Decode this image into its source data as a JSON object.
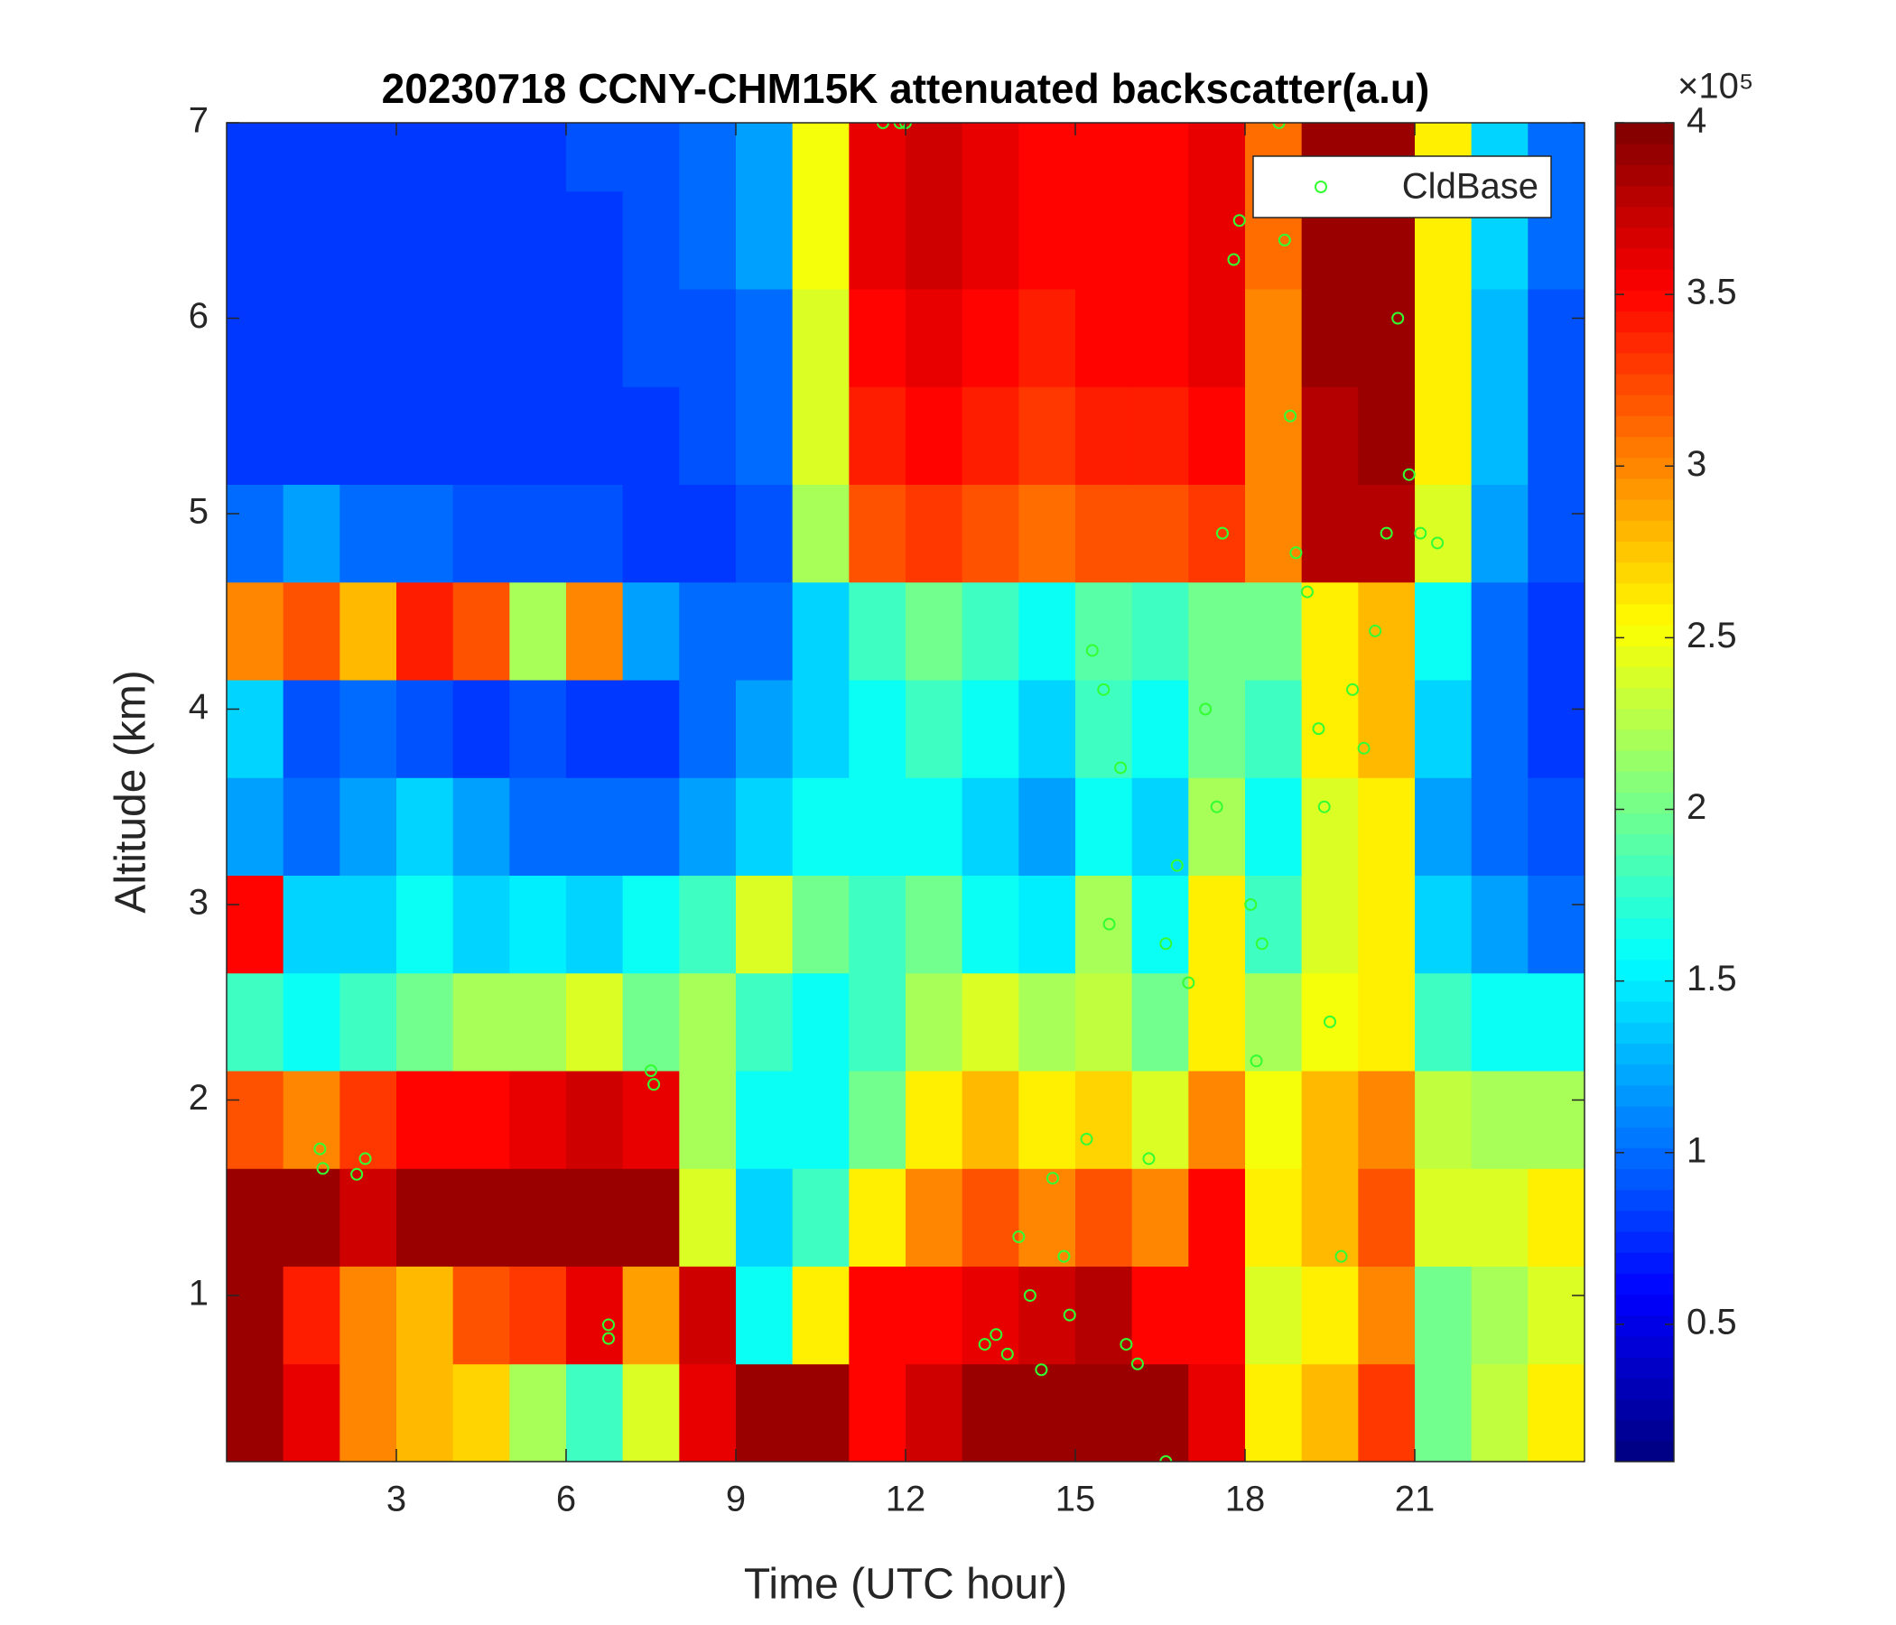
{
  "chart_data": {
    "type": "heatmap",
    "title": "20230718 CCNY-CHM15K attenuated backscatter(a.u)",
    "x_label": "Time (UTC hour)",
    "y_label": "Altitude (km)",
    "x": [
      0.5,
      1.5,
      2.5,
      3.5,
      4.5,
      5.5,
      6.5,
      7.5,
      8.5,
      9.5,
      10.5,
      11.5,
      12.5,
      13.5,
      14.5,
      15.5,
      16.5,
      17.5,
      18.5,
      19.5,
      20.5,
      21.5,
      22.5,
      23.5
    ],
    "y": [
      0.4,
      0.9,
      1.4,
      1.9,
      2.4,
      2.9,
      3.4,
      3.9,
      4.4,
      4.9,
      5.4,
      5.9,
      6.4,
      6.9
    ],
    "values": [
      [
        3.9,
        3.6,
        3.0,
        2.8,
        2.7,
        2.2,
        1.8,
        2.4,
        3.6,
        3.9,
        3.9,
        3.5,
        3.7,
        3.9,
        3.9,
        3.9,
        3.9,
        3.6,
        2.6,
        2.8,
        3.3,
        2.0,
        2.3,
        2.6
      ],
      [
        3.9,
        3.4,
        3.0,
        2.8,
        3.2,
        3.3,
        3.6,
        2.9,
        3.7,
        1.6,
        2.6,
        3.5,
        3.5,
        3.6,
        3.7,
        3.8,
        3.5,
        3.5,
        2.4,
        2.6,
        3.0,
        2.0,
        2.2,
        2.4
      ],
      [
        3.9,
        3.9,
        3.7,
        3.9,
        3.9,
        3.9,
        3.9,
        3.9,
        2.4,
        1.4,
        1.8,
        2.6,
        3.0,
        3.2,
        3.0,
        3.2,
        3.0,
        3.5,
        2.6,
        2.8,
        3.2,
        2.4,
        2.4,
        2.6
      ],
      [
        3.2,
        3.0,
        3.3,
        3.5,
        3.5,
        3.6,
        3.7,
        3.6,
        2.2,
        1.6,
        1.6,
        2.0,
        2.6,
        2.8,
        2.6,
        2.7,
        2.4,
        3.0,
        2.5,
        2.8,
        3.0,
        2.3,
        2.2,
        2.2
      ],
      [
        1.8,
        1.6,
        1.8,
        2.0,
        2.2,
        2.2,
        2.4,
        2.0,
        2.2,
        1.8,
        1.6,
        1.8,
        2.2,
        2.4,
        2.2,
        2.3,
        2.0,
        2.6,
        2.2,
        2.5,
        2.6,
        1.8,
        1.6,
        1.6
      ],
      [
        3.5,
        1.4,
        1.4,
        1.6,
        1.4,
        1.5,
        1.4,
        1.6,
        1.8,
        2.4,
        2.0,
        1.8,
        2.0,
        1.6,
        1.5,
        2.2,
        1.6,
        2.6,
        1.8,
        2.4,
        2.6,
        1.4,
        1.2,
        1.0
      ],
      [
        1.2,
        1.0,
        1.2,
        1.4,
        1.2,
        1.0,
        1.0,
        1.0,
        1.2,
        1.4,
        1.6,
        1.6,
        1.6,
        1.4,
        1.2,
        1.6,
        1.4,
        2.2,
        1.6,
        2.4,
        2.6,
        1.2,
        1.0,
        0.9
      ],
      [
        1.4,
        0.9,
        1.0,
        0.9,
        0.8,
        0.9,
        0.8,
        0.8,
        1.0,
        1.2,
        1.4,
        1.6,
        1.8,
        1.6,
        1.4,
        1.8,
        1.6,
        2.0,
        1.8,
        2.6,
        2.8,
        1.4,
        1.0,
        0.8
      ],
      [
        3.0,
        3.2,
        2.8,
        3.4,
        3.2,
        2.2,
        3.0,
        1.2,
        1.0,
        1.0,
        1.4,
        1.8,
        2.0,
        1.8,
        1.6,
        1.9,
        1.8,
        2.0,
        2.0,
        2.6,
        2.8,
        1.6,
        1.0,
        0.8
      ],
      [
        1.0,
        1.2,
        1.0,
        1.0,
        0.9,
        0.9,
        0.9,
        0.8,
        0.8,
        0.9,
        2.2,
        3.2,
        3.3,
        3.2,
        3.1,
        3.2,
        3.2,
        3.3,
        3.0,
        3.8,
        3.8,
        2.4,
        1.2,
        0.9
      ],
      [
        0.8,
        0.8,
        0.8,
        0.8,
        0.8,
        0.8,
        0.8,
        0.8,
        0.9,
        1.0,
        2.4,
        3.4,
        3.5,
        3.4,
        3.3,
        3.4,
        3.4,
        3.5,
        3.0,
        3.8,
        3.9,
        2.6,
        1.3,
        0.9
      ],
      [
        0.8,
        0.8,
        0.8,
        0.8,
        0.8,
        0.8,
        0.8,
        0.9,
        0.9,
        1.0,
        2.4,
        3.5,
        3.6,
        3.5,
        3.4,
        3.5,
        3.5,
        3.6,
        3.0,
        3.9,
        3.9,
        2.6,
        1.3,
        0.9
      ],
      [
        0.8,
        0.8,
        0.8,
        0.8,
        0.8,
        0.8,
        0.8,
        0.9,
        1.0,
        1.2,
        2.5,
        3.6,
        3.7,
        3.6,
        3.5,
        3.5,
        3.5,
        3.6,
        3.1,
        3.9,
        3.9,
        2.6,
        1.4,
        1.0
      ],
      [
        0.8,
        0.8,
        0.8,
        0.8,
        0.8,
        0.8,
        0.9,
        0.9,
        1.0,
        1.2,
        2.5,
        3.6,
        3.7,
        3.6,
        3.5,
        3.5,
        3.5,
        3.6,
        3.1,
        3.9,
        3.9,
        2.6,
        1.4,
        1.0
      ]
    ],
    "xlim": [
      0,
      24
    ],
    "xticks": [
      3,
      6,
      9,
      12,
      15,
      18,
      21
    ],
    "ylim": [
      0.15,
      7
    ],
    "yticks": [
      1,
      2,
      3,
      4,
      5,
      6,
      7
    ],
    "clim": [
      0.1,
      4
    ],
    "cticks": [
      0.5,
      1,
      1.5,
      2,
      2.5,
      3,
      3.5,
      4
    ],
    "colorbar_scale_label": "×10⁵",
    "colormap": "jet",
    "legend_position": "top-right",
    "overlay": {
      "type": "scatter",
      "name": "CldBase",
      "color": "#33ff33",
      "x": [
        1.65,
        1.7,
        2.45,
        2.3,
        6.75,
        6.75,
        7.5,
        7.55,
        11.6,
        11.9,
        12.0,
        13.4,
        13.6,
        13.8,
        14.0,
        14.2,
        14.4,
        14.6,
        14.8,
        14.9,
        15.2,
        15.3,
        15.5,
        15.6,
        15.8,
        15.9,
        16.1,
        16.3,
        16.6,
        16.8,
        17.0,
        17.3,
        17.5,
        17.6,
        17.8,
        17.9,
        18.1,
        18.3,
        18.6,
        18.7,
        18.8,
        18.9,
        19.1,
        19.3,
        19.4,
        19.5,
        19.7,
        19.9,
        20.1,
        20.3,
        20.5,
        20.7,
        20.9,
        21.1,
        21.4,
        16.6,
        18.2
      ],
      "y": [
        1.75,
        1.65,
        1.7,
        1.62,
        0.85,
        0.78,
        2.15,
        2.08,
        7.0,
        7.0,
        7.0,
        0.75,
        0.8,
        0.7,
        1.3,
        1.0,
        0.62,
        1.6,
        1.2,
        0.9,
        1.8,
        4.3,
        4.1,
        2.9,
        3.7,
        0.75,
        0.65,
        1.7,
        2.8,
        3.2,
        2.6,
        4.0,
        3.5,
        4.9,
        6.3,
        6.5,
        3.0,
        2.8,
        7.0,
        6.4,
        5.5,
        4.8,
        4.6,
        3.9,
        3.5,
        2.4,
        1.2,
        4.1,
        3.8,
        4.4,
        4.9,
        6.0,
        5.2,
        4.9,
        4.85,
        0.15,
        2.2
      ]
    }
  }
}
